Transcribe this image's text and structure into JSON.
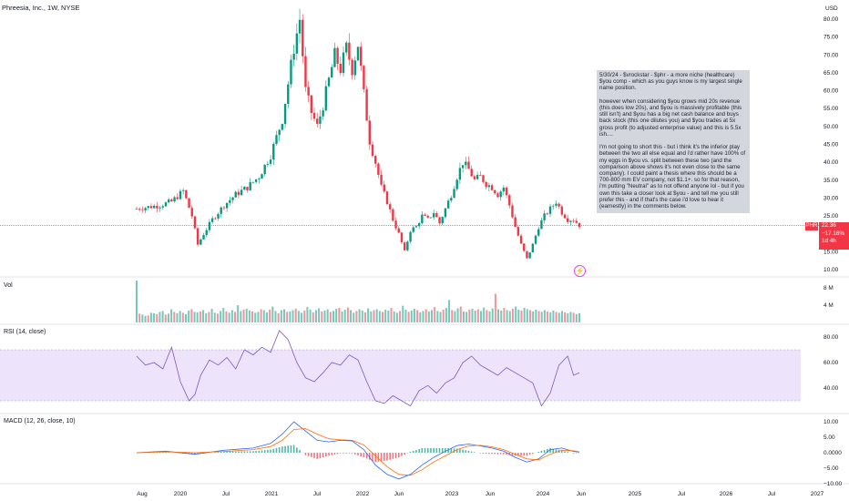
{
  "header": {
    "title": "Phreesia, Inc., 1W, NYSE",
    "currency": "USD"
  },
  "note": {
    "text": "5/30/24 - $vrockstar - $phr - a more niche (healthcare) $you comp - which as you guys know is my largest single name position.\n\nhowever when considering $you grows mid 20s revenue (this does low 20s), and $you is massively profitable (this still isn't) and $you has a big net cash balance and buys back stock (this one dilutes you) and $you trades at 5x gross profit (to adjusted enterprise value) and this is 5.5x ish....\n\nI'm not going to short this - but i think it's the inferior play between the two all else equal and i'd rather have 100% of my eggs in $you vs. split between these two (and the comparison above shows it's not even close to the same company). I could paint a thesis where this should be a 700-800 mm EV company, not $1.1+. so for that reason, i'm putting \"Neutral\" as to not offend anyone lol - but if you own this take a closer look at $you - and tell me you still prefer this - and if that's the case i'd love to hear it (earnestly) in the comments below.\n\n-V"
  },
  "price_tag": {
    "symbol": "PHR",
    "price": "22.36",
    "change": "−17.16%",
    "countdown": "1d 4h"
  },
  "colors": {
    "up": "#089981",
    "down": "#f23645",
    "rsi": "#7e57c2",
    "rsi_band": "#ede3fb",
    "macd": "#2962ff",
    "signal": "#ff6d00"
  },
  "chart_data": [
    {
      "type": "candlestick",
      "title": "Phreesia, Inc., 1W, NYSE",
      "ylim": [
        10,
        82
      ],
      "yticks": [
        "80.00",
        "75.00",
        "70.00",
        "65.00",
        "60.00",
        "55.00",
        "50.00",
        "45.00",
        "40.00",
        "35.00",
        "30.00",
        "25.00",
        "20.00",
        "15.00",
        "10.00"
      ],
      "xticks": [
        "Aug",
        "2020",
        "Jul",
        "2021",
        "Jul",
        "2022",
        "Jun",
        "2023",
        "Jun",
        "2024",
        "Jun",
        "2025",
        "Jul",
        "2026",
        "Jul",
        "2027"
      ],
      "last_price": 22.36,
      "series": [
        {
          "name": "PHR",
          "close_path": [
            [
              0,
              27
            ],
            [
              4,
              27.5
            ],
            [
              8,
              28
            ],
            [
              12,
              29
            ],
            [
              16,
              32
            ],
            [
              19,
              25
            ],
            [
              21,
              17
            ],
            [
              23,
              20
            ],
            [
              26,
              24
            ],
            [
              30,
              28
            ],
            [
              34,
              31
            ],
            [
              38,
              33
            ],
            [
              42,
              36
            ],
            [
              46,
              42
            ],
            [
              50,
              52
            ],
            [
              52,
              62
            ],
            [
              54,
              72
            ],
            [
              56,
              80
            ],
            [
              58,
              60
            ],
            [
              60,
              54
            ],
            [
              62,
              50
            ],
            [
              64,
              56
            ],
            [
              66,
              63
            ],
            [
              68,
              70
            ],
            [
              70,
              66
            ],
            [
              72,
              72
            ],
            [
              74,
              66
            ],
            [
              76,
              73
            ],
            [
              78,
              59
            ],
            [
              80,
              46
            ],
            [
              82,
              40
            ],
            [
              84,
              33
            ],
            [
              86,
              29
            ],
            [
              88,
              24
            ],
            [
              90,
              20
            ],
            [
              92,
              15
            ],
            [
              94,
              21
            ],
            [
              96,
              22
            ],
            [
              98,
              25
            ],
            [
              100,
              24
            ],
            [
              102,
              26
            ],
            [
              104,
              23
            ],
            [
              106,
              27
            ],
            [
              108,
              31
            ],
            [
              110,
              36
            ],
            [
              112,
              40
            ],
            [
              114,
              38
            ],
            [
              116,
              35
            ],
            [
              118,
              36
            ],
            [
              120,
              34
            ],
            [
              122,
              33
            ],
            [
              124,
              31
            ],
            [
              126,
              33
            ],
            [
              128,
              28
            ],
            [
              130,
              22
            ],
            [
              132,
              17
            ],
            [
              134,
              13
            ],
            [
              136,
              17
            ],
            [
              138,
              22
            ],
            [
              140,
              25
            ],
            [
              142,
              27
            ],
            [
              144,
              29
            ],
            [
              146,
              26
            ],
            [
              148,
              24
            ],
            [
              150,
              24
            ],
            [
              152,
              22.4
            ]
          ]
        }
      ]
    },
    {
      "type": "bar",
      "title": "Vol",
      "yticks": [
        "8 M",
        "4 M"
      ],
      "values": [
        9.5,
        2,
        1.8,
        1.5,
        1.6,
        2.2,
        2.1,
        1.9,
        2.4,
        2.6,
        1.8,
        2.0,
        3.0,
        2.4,
        2.1,
        2.6,
        2.2,
        1.9,
        2.7,
        3.0,
        2.4,
        2.3,
        2.5,
        2.8,
        2.1,
        2.4,
        3.1,
        2.2,
        2.0,
        2.6,
        3.3,
        2.5,
        2.2,
        2.8,
        2.4,
        3.9,
        2.6,
        2.9,
        3.1,
        2.7,
        2.5,
        2.2,
        2.4,
        3.0,
        2.8,
        2.3,
        2.9,
        3.6,
        2.6,
        2.1,
        2.8,
        3.0,
        2.4,
        2.5,
        2.8,
        3.1,
        2.6,
        2.2,
        2.7,
        3.5,
        2.9,
        2.3,
        2.8,
        3.2,
        2.5,
        2.7,
        3.0,
        2.4,
        2.6,
        3.1,
        3.3,
        2.5,
        2.9,
        3.4,
        2.8,
        2.2,
        2.6,
        3.0,
        2.7,
        2.3,
        3.2,
        2.5,
        2.8,
        3.0,
        2.6,
        2.4,
        2.9,
        2.7,
        3.3,
        2.5,
        2.2,
        2.6,
        3.8,
        2.9,
        2.4,
        2.7,
        3.1,
        2.8,
        2.3,
        2.6,
        3.0,
        2.5,
        2.8,
        3.5,
        2.6,
        2.4,
        2.9,
        3.3,
        5.1,
        2.8,
        2.6,
        3.2,
        3.6,
        2.5,
        2.4,
        2.9,
        3.1,
        2.7,
        3.0,
        2.6,
        3.4,
        2.8,
        2.5,
        3.2,
        6.5,
        3.0,
        2.7,
        3.3,
        2.8,
        2.6,
        3.1,
        3.6,
        2.9,
        2.7,
        3.3,
        3.0,
        2.8,
        2.5,
        2.9,
        2.6,
        2.4,
        2.8,
        2.5,
        2.3,
        2.7,
        2.4,
        2.2,
        2.6,
        2.3,
        2.1,
        2.4,
        2.2,
        1.9,
        2.1
      ]
    },
    {
      "type": "line",
      "title": "RSI (14, close)",
      "ylim": [
        20,
        90
      ],
      "yticks": [
        "80.00",
        "60.00",
        "40.00"
      ],
      "band": [
        30,
        70
      ],
      "x": [
        0,
        3,
        6,
        9,
        12,
        15,
        18,
        20,
        22,
        25,
        28,
        31,
        34,
        37,
        40,
        43,
        46,
        49,
        52,
        55,
        58,
        61,
        64,
        67,
        70,
        73,
        76,
        79,
        82,
        85,
        88,
        91,
        94,
        97,
        100,
        103,
        106,
        109,
        112,
        115,
        118,
        121,
        124,
        127,
        130,
        133,
        136,
        139,
        142,
        145,
        148,
        150,
        152
      ],
      "values": [
        65,
        58,
        60,
        55,
        72,
        45,
        30,
        35,
        50,
        62,
        58,
        64,
        55,
        70,
        66,
        72,
        68,
        85,
        78,
        60,
        48,
        45,
        52,
        60,
        58,
        66,
        62,
        45,
        30,
        28,
        34,
        30,
        26,
        38,
        42,
        36,
        44,
        48,
        60,
        65,
        58,
        54,
        50,
        56,
        52,
        48,
        44,
        26,
        36,
        58,
        65,
        50,
        52
      ]
    },
    {
      "type": "line",
      "title": "MACD (12, 26, close, 10)",
      "ylim": [
        -11,
        11
      ],
      "yticks": [
        "10.00",
        "5.00",
        "0.0000",
        "−5.00",
        "−10.00"
      ],
      "series": [
        {
          "name": "MACD",
          "x": [
            0,
            10,
            20,
            30,
            40,
            46,
            50,
            54,
            58,
            62,
            66,
            70,
            74,
            78,
            82,
            86,
            90,
            94,
            98,
            102,
            106,
            110,
            114,
            118,
            122,
            126,
            130,
            134,
            138,
            142,
            146,
            150,
            152
          ],
          "values": [
            0,
            0.5,
            -0.5,
            0.8,
            1.5,
            3,
            6,
            10,
            7,
            4,
            3.5,
            4,
            3.8,
            1,
            -4,
            -7,
            -8.5,
            -7,
            -4,
            -1.5,
            0.5,
            2.3,
            2.8,
            2.2,
            1.5,
            0.5,
            -1.5,
            -3,
            -2,
            1,
            1.5,
            0.4,
            0.2
          ]
        },
        {
          "name": "Signal",
          "x": [
            0,
            10,
            20,
            30,
            40,
            46,
            50,
            54,
            58,
            62,
            66,
            70,
            74,
            78,
            82,
            86,
            90,
            94,
            98,
            102,
            106,
            110,
            114,
            118,
            122,
            126,
            130,
            134,
            138,
            142,
            146,
            150,
            152
          ],
          "values": [
            0,
            0.3,
            0,
            0.4,
            1,
            2,
            4,
            7.5,
            7.8,
            6,
            4.5,
            4.2,
            4,
            2.5,
            -1,
            -4.5,
            -7,
            -7.3,
            -5.5,
            -3,
            -1,
            1,
            2.2,
            2.4,
            1.9,
            1,
            -0.5,
            -2,
            -2.3,
            -0.5,
            0.8,
            0.6,
            0.3
          ]
        }
      ]
    }
  ]
}
